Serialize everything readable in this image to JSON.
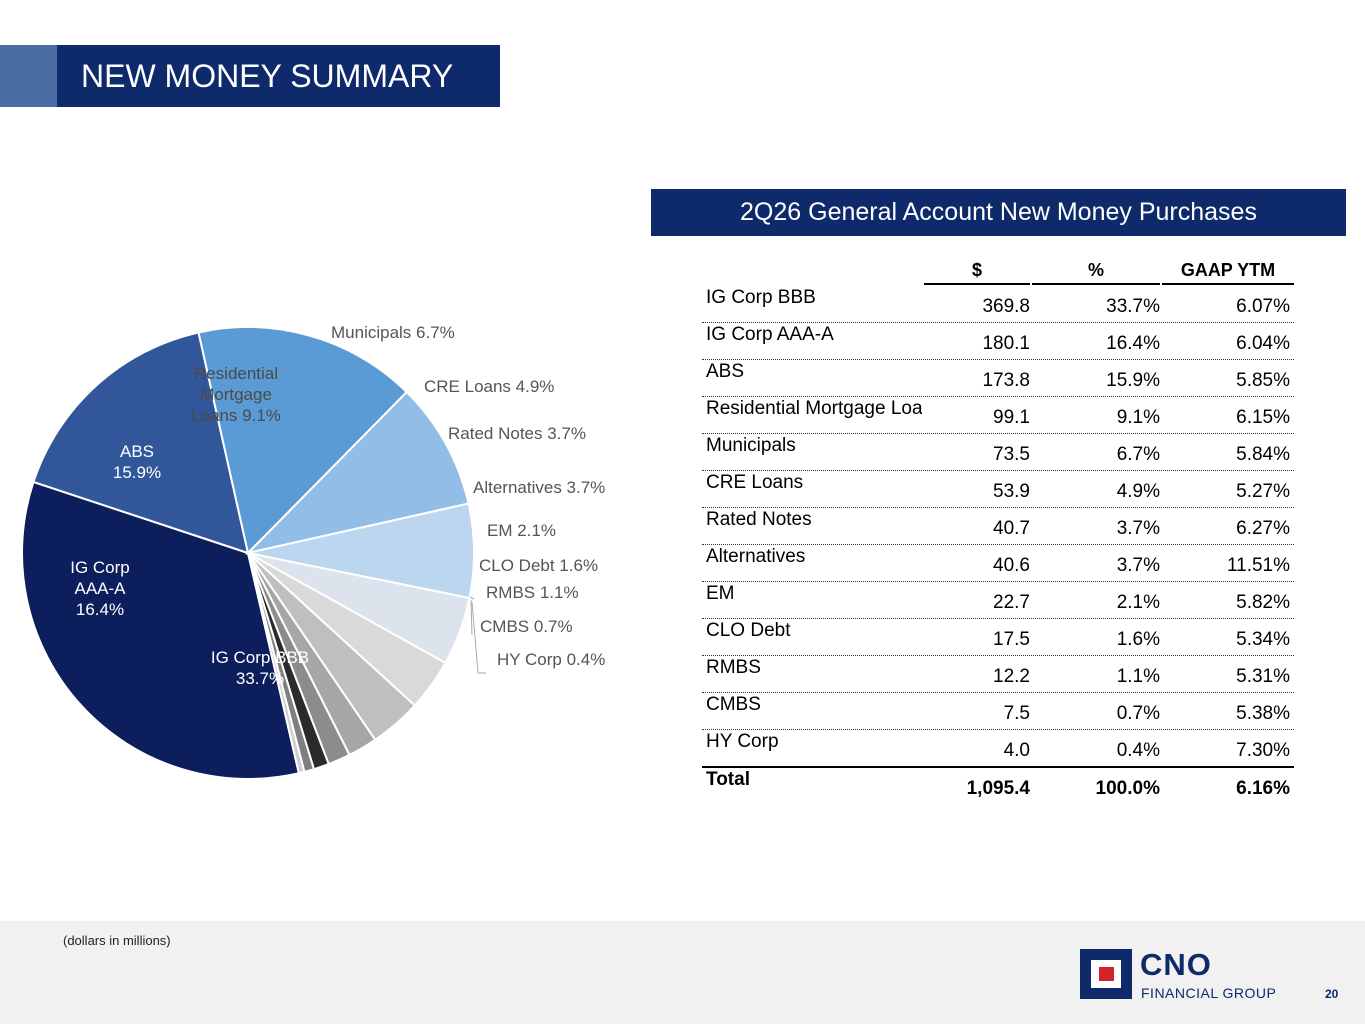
{
  "title": "NEW MONEY SUMMARY",
  "panel_title": "2Q26 General Account New Money Purchases",
  "table": {
    "headers": [
      "",
      "$",
      "%",
      "GAAP YTM"
    ],
    "rows": [
      {
        "label": "IG Corp BBB",
        "amount": "369.8",
        "pct": "33.7%",
        "ytm": "6.07%"
      },
      {
        "label": "IG Corp AAA-A",
        "amount": "180.1",
        "pct": "16.4%",
        "ytm": "6.04%"
      },
      {
        "label": "ABS",
        "amount": "173.8",
        "pct": "15.9%",
        "ytm": "5.85%"
      },
      {
        "label": "Residential Mortgage Loans",
        "amount": "99.1",
        "pct": "9.1%",
        "ytm": "6.15%"
      },
      {
        "label": "Municipals",
        "amount": "73.5",
        "pct": "6.7%",
        "ytm": "5.84%"
      },
      {
        "label": "CRE Loans",
        "amount": "53.9",
        "pct": "4.9%",
        "ytm": "5.27%"
      },
      {
        "label": "Rated Notes",
        "amount": "40.7",
        "pct": "3.7%",
        "ytm": "6.27%"
      },
      {
        "label": "Alternatives",
        "amount": "40.6",
        "pct": "3.7%",
        "ytm": "11.51%"
      },
      {
        "label": "EM",
        "amount": "22.7",
        "pct": "2.1%",
        "ytm": "5.82%"
      },
      {
        "label": "CLO Debt",
        "amount": "17.5",
        "pct": "1.6%",
        "ytm": "5.34%"
      },
      {
        "label": "RMBS",
        "amount": "12.2",
        "pct": "1.1%",
        "ytm": "5.31%"
      },
      {
        "label": "CMBS",
        "amount": "7.5",
        "pct": "0.7%",
        "ytm": "5.38%"
      },
      {
        "label": "HY Corp",
        "amount": "4.0",
        "pct": "0.4%",
        "ytm": "7.30%"
      }
    ],
    "total": {
      "label": "Total",
      "amount": "1,095.4",
      "pct": "100.0%",
      "ytm": "6.16%"
    }
  },
  "chart_data": {
    "type": "pie",
    "slices": [
      {
        "label": "IG Corp BBB",
        "value": 33.7,
        "display": [
          "IG Corp BBB",
          "33.7%"
        ],
        "color": "#0c1f5c",
        "text_color": "#ffffff"
      },
      {
        "label": "IG Corp AAA-A",
        "value": 16.4,
        "display": [
          "IG Corp",
          "AAA-A",
          "16.4%"
        ],
        "color": "#31579a",
        "text_color": "#ffffff"
      },
      {
        "label": "ABS",
        "value": 15.9,
        "display": [
          "ABS",
          "15.9%"
        ],
        "color": "#5b9bd5",
        "text_color": "#ffffff"
      },
      {
        "label": "Residential Mortgage Loans",
        "value": 9.1,
        "display": [
          "Residential",
          "Mortgage",
          "Loans 9.1%"
        ],
        "color": "#92bde6",
        "text_color": "#4a4a4a"
      },
      {
        "label": "Municipals",
        "value": 6.7,
        "display": [
          "Municipals 6.7%"
        ],
        "color": "#bcd6f0",
        "text_color": "#555555"
      },
      {
        "label": "CRE Loans",
        "value": 4.9,
        "display": [
          "CRE Loans 4.9%"
        ],
        "color": "#dde3ec",
        "text_color": "#555555"
      },
      {
        "label": "Rated Notes",
        "value": 3.7,
        "display": [
          "Rated Notes 3.7%"
        ],
        "color": "#d9d9d9",
        "text_color": "#555555"
      },
      {
        "label": "Alternatives",
        "value": 3.7,
        "display": [
          "Alternatives 3.7%"
        ],
        "color": "#bfbfbf",
        "text_color": "#555555"
      },
      {
        "label": "EM",
        "value": 2.1,
        "display": [
          "EM 2.1%"
        ],
        "color": "#a6a6a6",
        "text_color": "#555555"
      },
      {
        "label": "CLO Debt",
        "value": 1.6,
        "display": [
          "CLO Debt 1.6%"
        ],
        "color": "#8c8c8c",
        "text_color": "#555555"
      },
      {
        "label": "RMBS",
        "value": 1.1,
        "display": [
          "RMBS 1.1%"
        ],
        "color": "#2b2b2b",
        "text_color": "#555555"
      },
      {
        "label": "CMBS",
        "value": 0.7,
        "display": [
          "CMBS 0.7%"
        ],
        "color": "#7f7f7f",
        "text_color": "#555555"
      },
      {
        "label": "HY Corp",
        "value": 0.4,
        "display": [
          "HY Corp 0.4%"
        ],
        "color": "#d0d0d0",
        "text_color": "#555555"
      }
    ]
  },
  "footer": {
    "note": "(dollars in millions)",
    "logo_name": "CNO",
    "logo_sub": "FINANCIAL GROUP",
    "page_number": "20"
  }
}
